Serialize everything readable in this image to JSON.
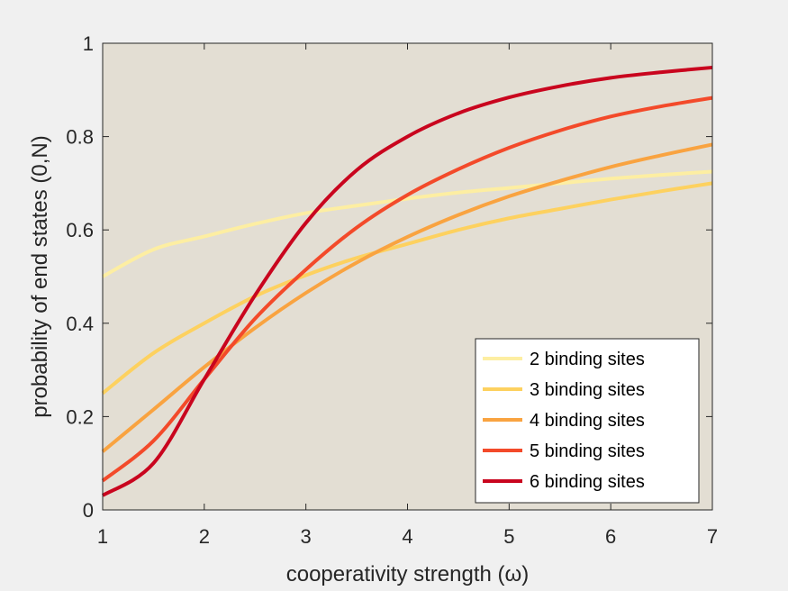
{
  "chart_data": {
    "type": "line",
    "xlabel": "cooperativity strength (ω)",
    "ylabel": "probability of end states (0,N)",
    "xlim": [
      1,
      7
    ],
    "ylim": [
      0,
      1
    ],
    "xticks": [
      "1",
      "2",
      "3",
      "4",
      "5",
      "6",
      "7"
    ],
    "yticks": [
      "0",
      "0.2",
      "0.4",
      "0.6",
      "0.8",
      "1"
    ],
    "grid": false,
    "legend_position": "bottom-right",
    "plot_background": "#e3ded3",
    "x": [
      1.0,
      1.5,
      2.0,
      2.5,
      3.0,
      3.5,
      4.0,
      4.5,
      5.0,
      5.5,
      6.0,
      6.5,
      7.0
    ],
    "series": [
      {
        "name": "2 binding sites",
        "color": "#fdeea2",
        "values": [
          0.5,
          0.558,
          0.586,
          0.613,
          0.636,
          0.652,
          0.667,
          0.68,
          0.69,
          0.7,
          0.71,
          0.718,
          0.725
        ]
      },
      {
        "name": "3 binding sites",
        "color": "#fdd15f",
        "values": [
          0.25,
          0.336,
          0.4,
          0.458,
          0.503,
          0.54,
          0.57,
          0.6,
          0.625,
          0.645,
          0.665,
          0.683,
          0.7
        ]
      },
      {
        "name": "4 binding sites",
        "color": "#f9a340",
        "values": [
          0.125,
          0.215,
          0.306,
          0.39,
          0.465,
          0.53,
          0.585,
          0.632,
          0.672,
          0.705,
          0.735,
          0.76,
          0.783
        ]
      },
      {
        "name": "5 binding sites",
        "color": "#f34a2a",
        "values": [
          0.0625,
          0.148,
          0.28,
          0.41,
          0.515,
          0.605,
          0.675,
          0.73,
          0.776,
          0.813,
          0.843,
          0.865,
          0.883
        ]
      },
      {
        "name": "6 binding sites",
        "color": "#c9051e",
        "values": [
          0.031,
          0.1,
          0.28,
          0.46,
          0.615,
          0.728,
          0.8,
          0.85,
          0.884,
          0.908,
          0.926,
          0.938,
          0.948
        ]
      }
    ]
  }
}
